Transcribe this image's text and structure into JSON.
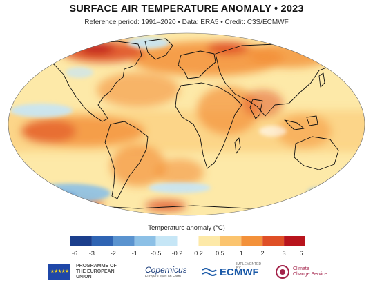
{
  "title": "SURFACE AIR TEMPERATURE ANOMALY • 2023",
  "subtitle": "Reference period: 1991–2020 • Data: ERA5 • Credit: C3S/ECMWF",
  "legend": {
    "title": "Temperature anomaly (°C)",
    "ticks": [
      "-6",
      "-3",
      "-2",
      "-1",
      "-0.5",
      "-0.2",
      "0.2",
      "0.5",
      "1",
      "2",
      "3",
      "6"
    ],
    "colors": [
      "#1b3e8c",
      "#2f64b3",
      "#5a93cf",
      "#8cc0e6",
      "#c6e6f6",
      "#ffffff",
      "#fde9a8",
      "#fbc46e",
      "#f3913a",
      "#df4f26",
      "#b8141c"
    ]
  },
  "map": {
    "ocean_base_color": "#fde9a8",
    "coastline_color": "#111111"
  },
  "footer": {
    "eu_label_1": "PROGRAMME OF",
    "eu_label_2": "THE EUROPEAN UNION",
    "copernicus": "Copernicus",
    "copernicus_sub": "Europe's eyes on Earth",
    "implemented_by": "IMPLEMENTED BY",
    "ecmwf": "ECMWF",
    "c3s_1": "Climate",
    "c3s_2": "Change Service"
  }
}
